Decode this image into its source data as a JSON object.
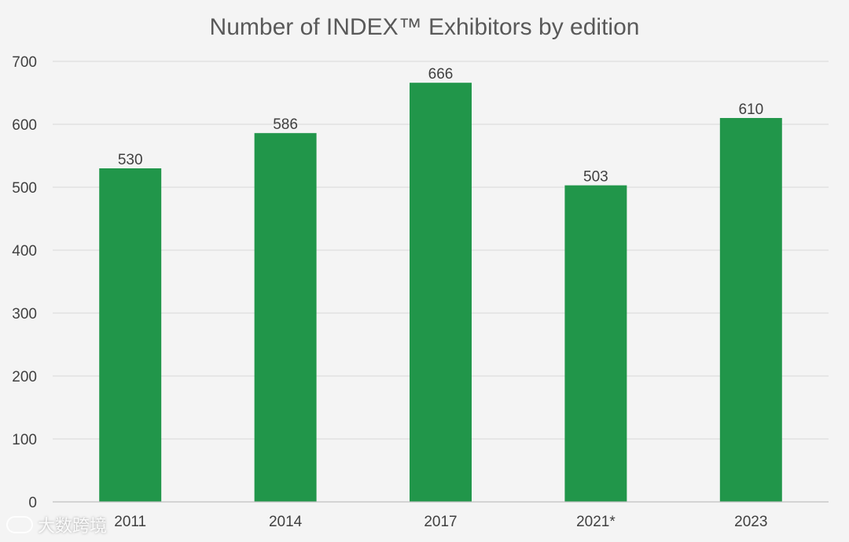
{
  "chart_data": {
    "type": "bar",
    "title": "Number of INDEX™ Exhibitors by edition",
    "categories": [
      "2011",
      "2014",
      "2017",
      "2021*",
      "2023"
    ],
    "values": [
      530,
      586,
      666,
      503,
      610
    ],
    "xlabel": "",
    "ylabel": "",
    "ylim": [
      0,
      700
    ],
    "yticks": [
      0,
      100,
      200,
      300,
      400,
      500,
      600,
      700
    ],
    "grid": true,
    "legend": "none",
    "bar_color": "#21964a",
    "data_labels": true
  },
  "watermark": {
    "text": "大数跨境"
  }
}
